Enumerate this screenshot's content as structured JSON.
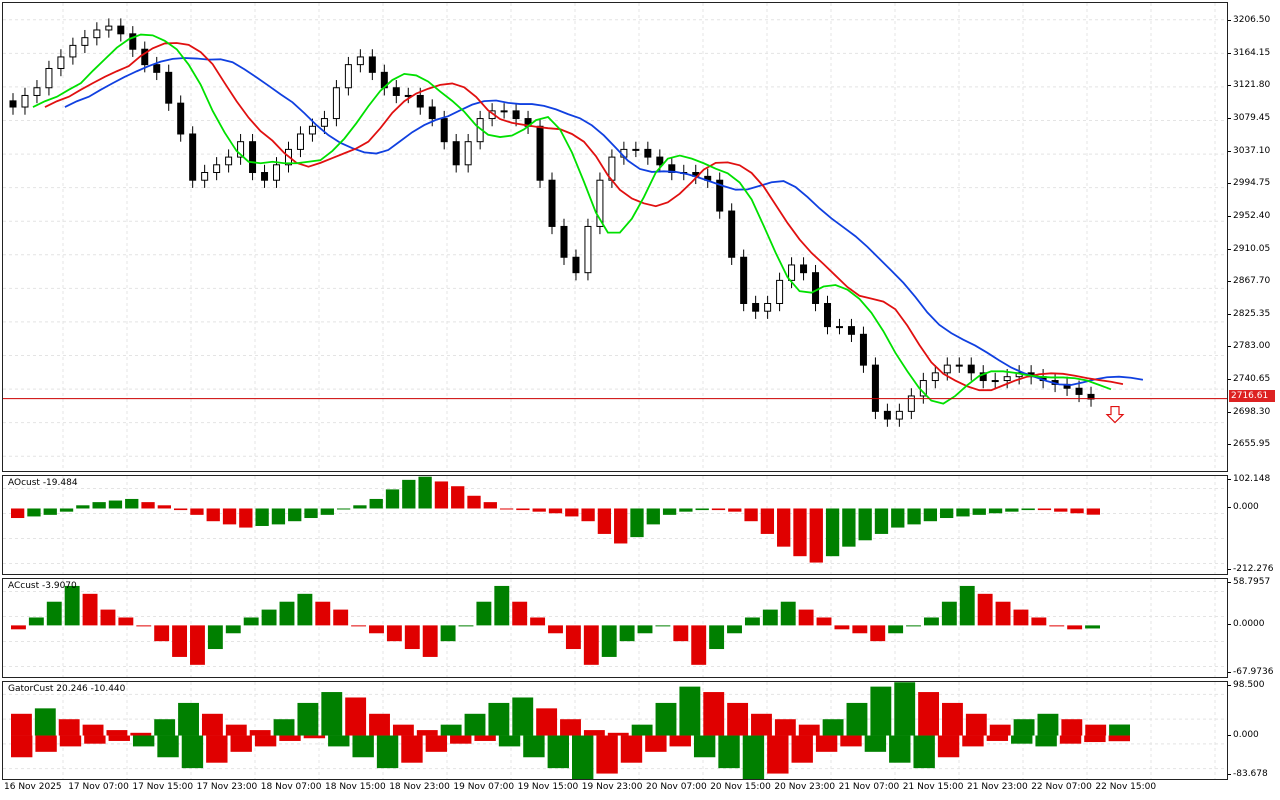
{
  "main": {
    "y_ticks": [
      "3206.50",
      "3164.15",
      "3121.80",
      "3079.45",
      "3037.10",
      "2994.75",
      "2952.40",
      "2910.05",
      "2867.70",
      "2825.35",
      "2783.00",
      "2740.65",
      "2698.30",
      "2655.95"
    ],
    "price_ylim": [
      2620,
      3230
    ],
    "current_price": "2716.61",
    "series_colors": {
      "fast": "#00e000",
      "mid": "#e01010",
      "slow": "#1040e0",
      "bull_candle": "#ffffff",
      "bear_candle": "#000000"
    },
    "signal_arrow": "down-arrow-red-outline"
  },
  "indicators": {
    "ao": {
      "title": "AOcust -19.484",
      "ticks": [
        "102.148",
        "0.000",
        "-212.276"
      ],
      "ylim": [
        -212.276,
        102.148
      ]
    },
    "ac": {
      "title": "ACcust -3.9070",
      "ticks": [
        "58.7957",
        "0.0000",
        "-67.9736"
      ],
      "ylim": [
        -67.9736,
        58.7957
      ]
    },
    "gator": {
      "title": "GatorCust 20.246 -10.440",
      "ticks": [
        "98.500",
        "0.000",
        "-83.678"
      ],
      "ylim": [
        -83.678,
        98.5
      ]
    }
  },
  "x_axis": {
    "labels": [
      "16 Nov 2025",
      "17 Nov 07:00",
      "17 Nov 15:00",
      "17 Nov 23:00",
      "18 Nov 07:00",
      "18 Nov 15:00",
      "18 Nov 23:00",
      "19 Nov 07:00",
      "19 Nov 15:00",
      "19 Nov 23:00",
      "20 Nov 07:00",
      "20 Nov 15:00",
      "20 Nov 23:00",
      "21 Nov 07:00",
      "21 Nov 15:00",
      "21 Nov 23:00",
      "22 Nov 07:00",
      "22 Nov 15:00"
    ]
  },
  "chart_data": {
    "type": "candlestick",
    "series": [
      {
        "name": "",
        "values": [
          3095,
          3110,
          3120,
          3145,
          3160,
          3175,
          3185,
          3195,
          3200,
          3190,
          3170,
          3150,
          3140,
          3100,
          3060,
          3000,
          3010,
          3020,
          3030,
          3050,
          3010,
          3000,
          3020,
          3040,
          3060,
          3070,
          3080,
          3120,
          3150,
          3160,
          3140,
          3120,
          3110,
          3110,
          3095,
          3080,
          3050,
          3020,
          3050,
          3080,
          3090,
          3090,
          3080,
          3070,
          3000,
          2940,
          2900,
          2880,
          2940,
          3000,
          3030,
          3040,
          3040,
          3030,
          3020,
          3010,
          3010,
          3005,
          3000,
          2960,
          2900,
          2840,
          2830,
          2840,
          2870,
          2890,
          2880,
          2840,
          2810,
          2810,
          2800,
          2760,
          2700,
          2690,
          2700,
          2720,
          2740,
          2750,
          2760,
          2760,
          2750,
          2740,
          2740,
          2745,
          2750,
          2745,
          2740,
          2735,
          2730,
          2722,
          2716
        ]
      }
    ],
    "ao": [
      -30,
      -25,
      -20,
      -10,
      10,
      20,
      25,
      30,
      20,
      10,
      -5,
      -20,
      -40,
      -50,
      -60,
      -55,
      -50,
      -40,
      -30,
      -20,
      0,
      10,
      30,
      60,
      90,
      100,
      85,
      70,
      40,
      20,
      0,
      -5,
      -10,
      -15,
      -25,
      -40,
      -80,
      -110,
      -90,
      -50,
      -20,
      -10,
      -5,
      -5,
      -10,
      -40,
      -80,
      -120,
      -150,
      -170,
      -150,
      -120,
      -100,
      -80,
      -60,
      -50,
      -40,
      -30,
      -25,
      -20,
      -15,
      -10,
      -5,
      -5,
      -10,
      -15,
      -19.484
    ],
    "ac": [
      -5,
      10,
      30,
      50,
      40,
      20,
      10,
      0,
      -20,
      -40,
      -50,
      -30,
      -10,
      10,
      20,
      30,
      40,
      30,
      20,
      0,
      -10,
      -20,
      -30,
      -40,
      -20,
      0,
      30,
      50,
      30,
      10,
      -10,
      -30,
      -50,
      -40,
      -20,
      -10,
      0,
      -20,
      -50,
      -30,
      -10,
      10,
      20,
      30,
      20,
      10,
      -5,
      -10,
      -20,
      -10,
      0,
      10,
      30,
      50,
      40,
      30,
      20,
      10,
      0,
      -5,
      -3.907
    ],
    "gator_up": [
      40,
      50,
      30,
      20,
      10,
      5,
      30,
      60,
      40,
      20,
      10,
      30,
      60,
      80,
      70,
      40,
      20,
      10,
      20,
      40,
      60,
      70,
      50,
      30,
      10,
      5,
      20,
      60,
      90,
      80,
      60,
      40,
      30,
      20,
      30,
      60,
      90,
      98,
      80,
      60,
      40,
      20,
      30,
      40,
      30,
      20,
      20.246
    ],
    "gator_down": [
      -40,
      -30,
      -20,
      -15,
      -10,
      -20,
      -40,
      -60,
      -50,
      -30,
      -20,
      -10,
      -5,
      -20,
      -40,
      -60,
      -50,
      -30,
      -15,
      -10,
      -20,
      -40,
      -60,
      -80,
      -70,
      -50,
      -30,
      -20,
      -40,
      -60,
      -83,
      -70,
      -50,
      -30,
      -20,
      -30,
      -50,
      -60,
      -40,
      -20,
      -10,
      -15,
      -20,
      -15,
      -12,
      -10.44
    ]
  }
}
